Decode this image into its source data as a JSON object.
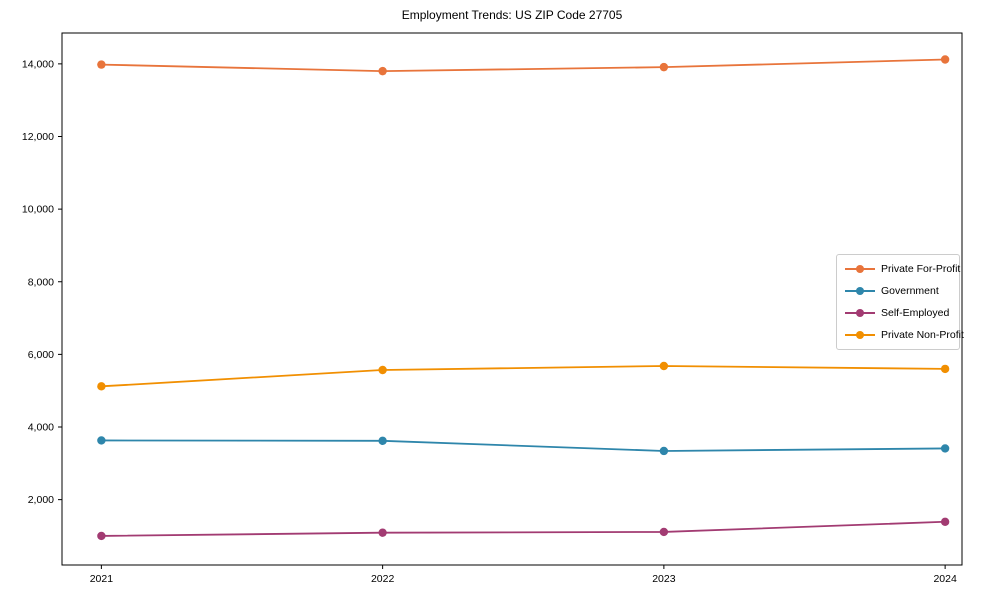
{
  "page": {
    "background": "#ffffff"
  },
  "chart_data": {
    "type": "line",
    "title": "Employment Trends: US ZIP Code 27705",
    "xlabel": "",
    "ylabel": "",
    "x": [
      2021,
      2022,
      2023,
      2024
    ],
    "x_tick_labels": [
      "2021",
      "2022",
      "2023",
      "2024"
    ],
    "series": [
      {
        "name": "Private For-Profit",
        "color": "#E8743B",
        "values": [
          13980,
          13800,
          13910,
          14120
        ]
      },
      {
        "name": "Government",
        "color": "#2E86AB",
        "values": [
          3630,
          3620,
          3340,
          3410
        ]
      },
      {
        "name": "Self-Employed",
        "color": "#A23B72",
        "values": [
          1000,
          1090,
          1110,
          1390
        ]
      },
      {
        "name": "Private Non-Profit",
        "color": "#F18F01",
        "values": [
          5120,
          5570,
          5680,
          5600
        ]
      }
    ],
    "y_ticks": [
      2000,
      4000,
      6000,
      8000,
      10000,
      12000,
      14000
    ],
    "y_tick_labels": [
      "2,000",
      "4,000",
      "6,000",
      "8,000",
      "10,000",
      "12,000",
      "14,000"
    ],
    "xlim": [
      2020.86,
      2024.06
    ],
    "ylim": [
      200,
      14850
    ],
    "grid": false,
    "legend_position": "center right",
    "axis_color": "#000000",
    "tick_label_color": "#000000"
  }
}
